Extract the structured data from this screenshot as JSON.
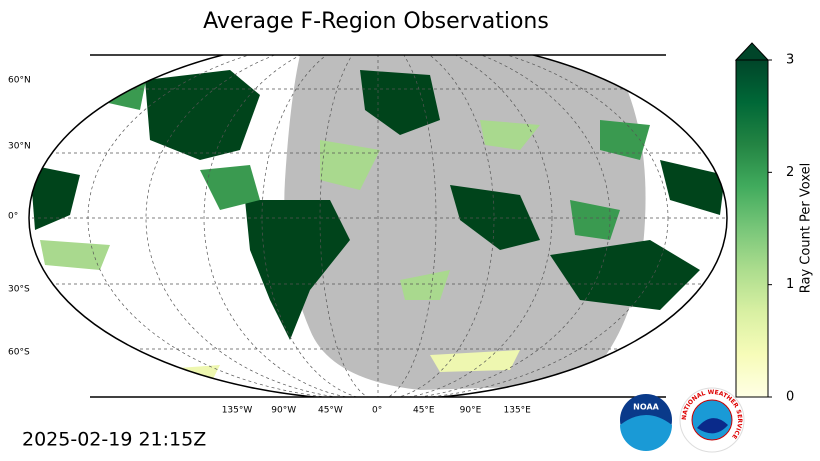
{
  "title": "Average F-Region Observations",
  "timestamp": "2025-02-19 21:15Z",
  "map": {
    "lat_labels": [
      "60°N",
      "30°N",
      "0°",
      "30°S",
      "60°S"
    ],
    "lon_labels": [
      "135°W",
      "90°W",
      "45°W",
      "0°",
      "45°E",
      "90°E",
      "135°E"
    ]
  },
  "colorbar": {
    "label": "Ray Count Per Voxel",
    "range": [
      0,
      3
    ],
    "ticks": [
      0,
      1,
      2,
      3
    ],
    "colors": [
      "#ffffe5",
      "#f7fcb9",
      "#d9f0a3",
      "#addd8e",
      "#78c679",
      "#41ab5d",
      "#238443",
      "#006837",
      "#004529"
    ]
  },
  "logos": {
    "noaa": "NOAA",
    "nws": "NATIONAL WEATHER SERVICE"
  }
}
